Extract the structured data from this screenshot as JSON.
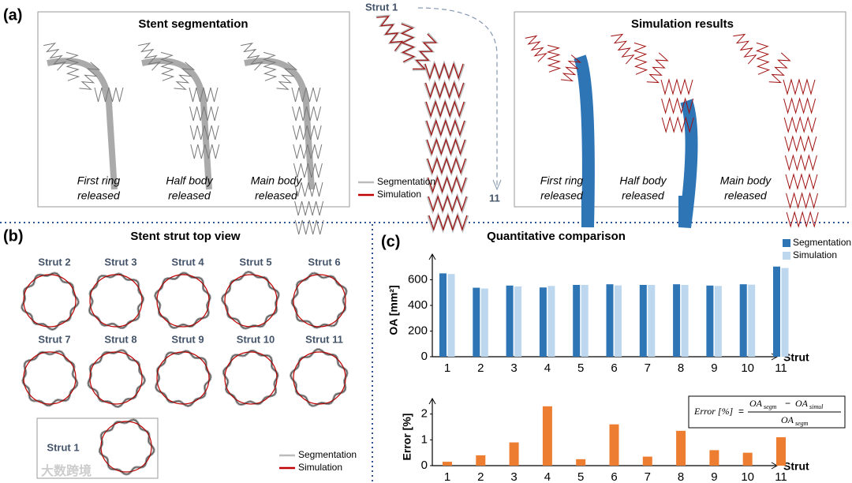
{
  "panel_a": {
    "label": "(a)",
    "segmentation_title": "Stent segmentation",
    "simulation_title": "Simulation results",
    "stages": [
      [
        "First ring",
        "released"
      ],
      [
        "Half body",
        "released"
      ],
      [
        "Main body",
        "released"
      ]
    ],
    "strut_start": "Strut 1",
    "strut_end": "11",
    "legend": [
      "Segmentation",
      "Simulation"
    ]
  },
  "panel_b": {
    "label": "(b)",
    "title": "Stent strut top view",
    "struts": [
      "Strut 2",
      "Strut 3",
      "Strut 4",
      "Strut 5",
      "Strut 6",
      "Strut 7",
      "Strut 8",
      "Strut 9",
      "Strut 10",
      "Strut 11"
    ],
    "strut_1": "Strut 1",
    "legend": [
      "Segmentation",
      "Simulation"
    ]
  },
  "panel_c": {
    "label": "(c)",
    "title": "Quantitative comparison"
  },
  "watermark": "大数跨境",
  "chart_data": [
    {
      "type": "bar",
      "y_label": "OA [mm²]",
      "x_label": "Strut",
      "categories": [
        "1",
        "2",
        "3",
        "4",
        "5",
        "6",
        "7",
        "8",
        "9",
        "10",
        "11"
      ],
      "series": [
        {
          "name": "Segmentation",
          "color": "#2e75b6",
          "values": [
            650,
            538,
            555,
            540,
            560,
            565,
            560,
            565,
            555,
            565,
            703
          ]
        },
        {
          "name": "Simulation",
          "color": "#bdd7ee",
          "values": [
            645,
            532,
            548,
            552,
            560,
            556,
            560,
            560,
            552,
            562,
            692
          ]
        }
      ],
      "ylim": [
        0,
        800
      ],
      "yticks": [
        0,
        200,
        400,
        600
      ],
      "legend": "upper right"
    },
    {
      "type": "bar",
      "y_label": "Error [%]",
      "x_label": "Strut",
      "categories": [
        "1",
        "2",
        "3",
        "4",
        "5",
        "6",
        "7",
        "8",
        "9",
        "10",
        "11"
      ],
      "values": [
        0.15,
        0.4,
        0.9,
        2.3,
        0.25,
        1.6,
        0.35,
        1.35,
        0.6,
        0.5,
        1.1
      ],
      "color": "#ed7d31",
      "ylim": [
        0,
        2.6
      ],
      "yticks": [
        0,
        1,
        2
      ],
      "formula": {
        "lhs": "Error [%]",
        "equals": "=",
        "minus": "−",
        "numerator": [
          {
            "base": "OA",
            "sub": "segm"
          },
          {
            "base": "OA",
            "sub": "simul"
          }
        ],
        "denominator": {
          "base": "OA",
          "sub": "segm"
        }
      }
    }
  ]
}
